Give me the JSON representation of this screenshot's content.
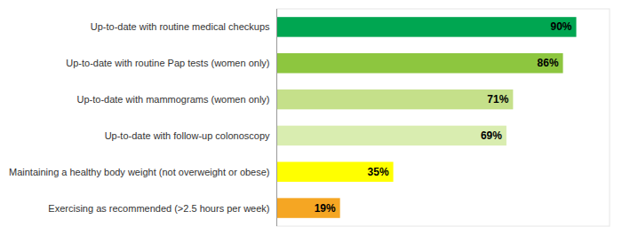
{
  "chart_data": {
    "type": "bar",
    "orientation": "horizontal",
    "categories": [
      "Exercising as recommended (>2.5 hours per week)",
      "Maintaining a healthy body weight (not overweight or obese)",
      "Up-to-date with follow-up colonoscopy",
      "Up-to-date with mammograms (women only)",
      "Up-to-date with routine Pap tests (women only)",
      "Up-to-date with routine medical checkups"
    ],
    "values": [
      19,
      35,
      69,
      71,
      86,
      90
    ],
    "value_labels": [
      "19%",
      "35%",
      "69%",
      "71%",
      "86%",
      "90%"
    ],
    "colors": [
      "#F5A623",
      "#FFFF00",
      "#D9EDB0",
      "#C5E08A",
      "#8DC63F",
      "#00A651"
    ],
    "xlim": [
      0,
      100
    ],
    "data_labels": true,
    "tick_labels": "y",
    "grid": false
  }
}
